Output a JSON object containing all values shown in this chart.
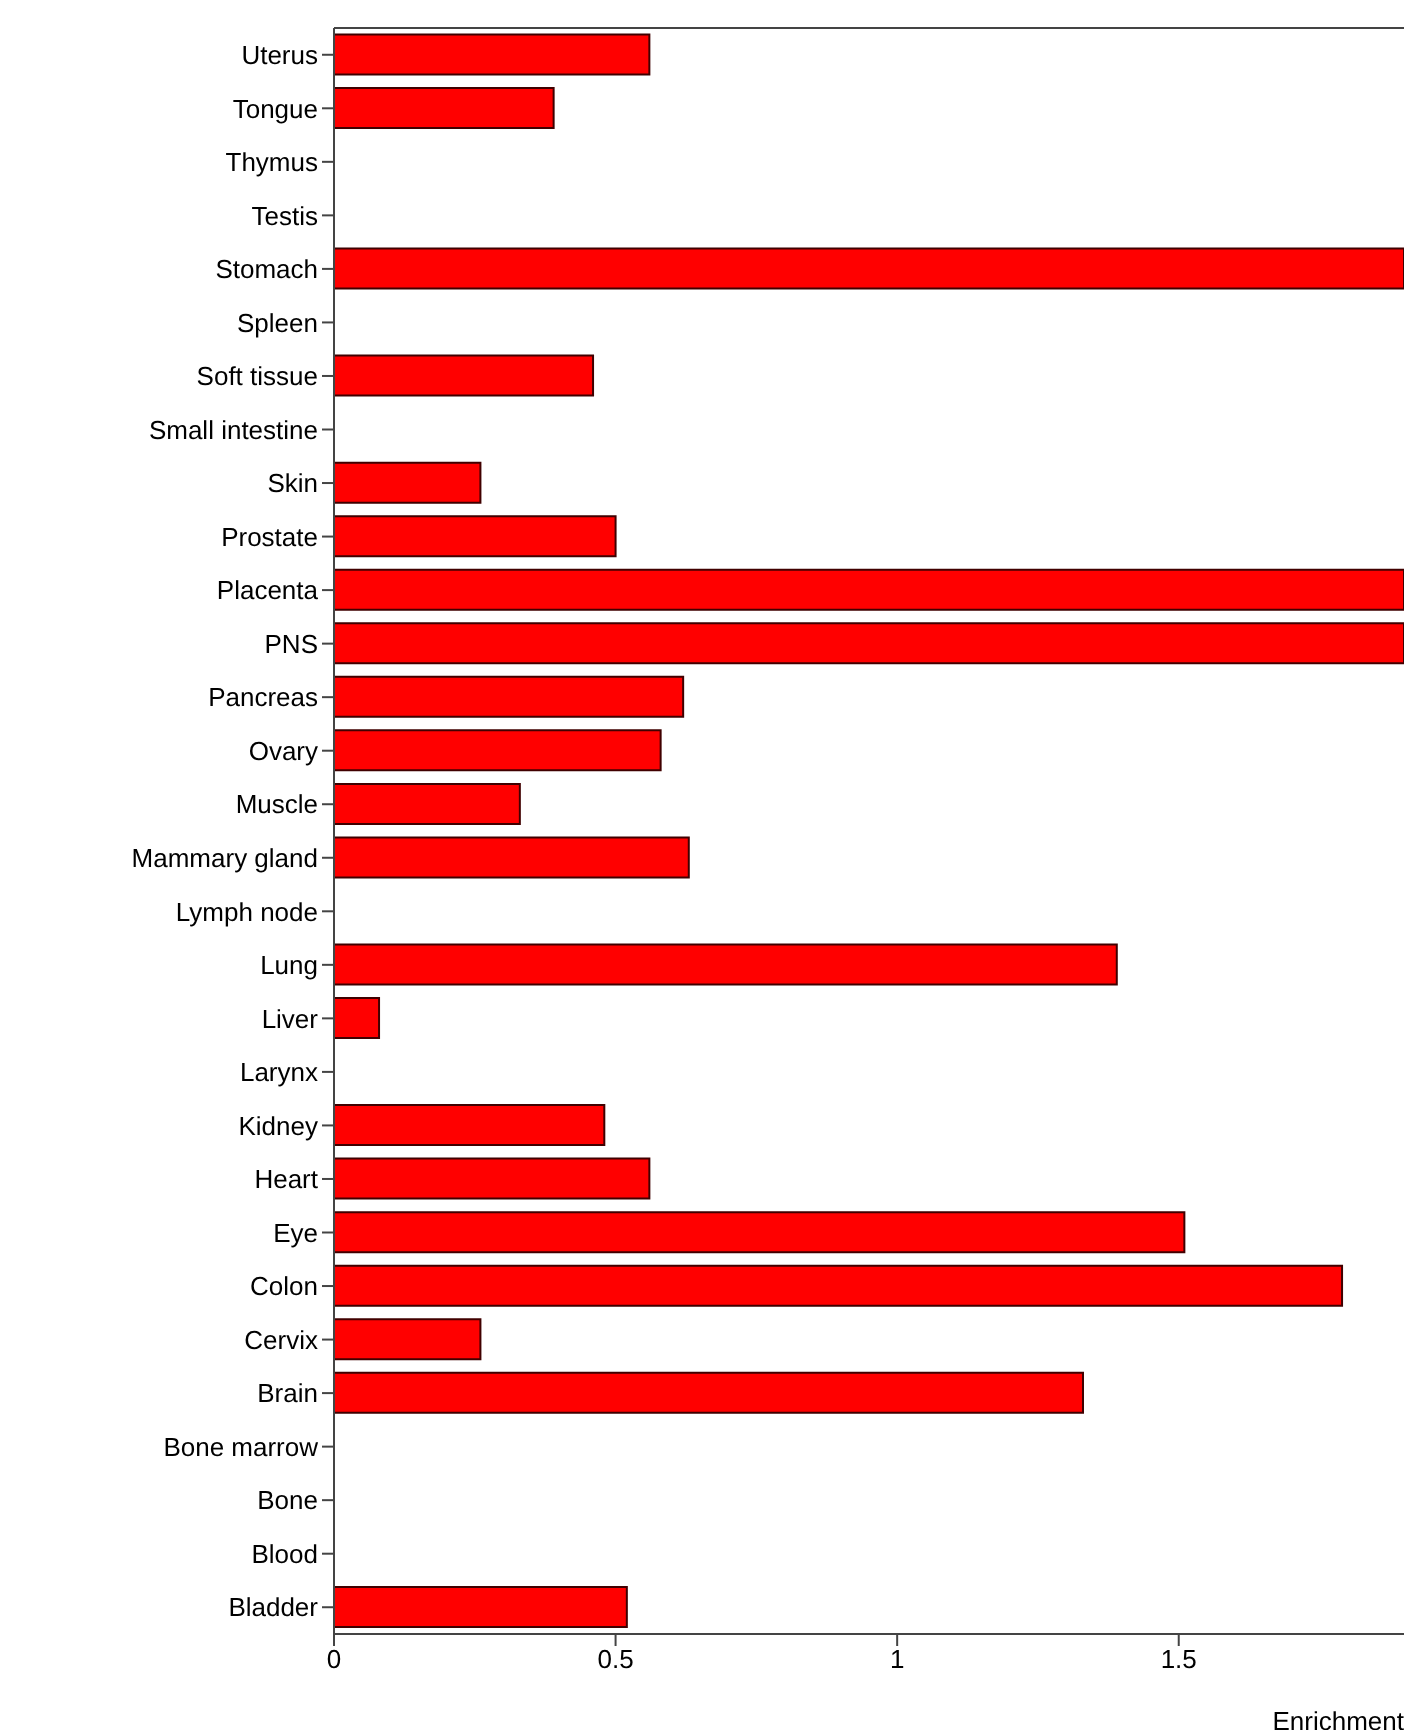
{
  "chart_data": {
    "type": "bar",
    "orientation": "horizontal",
    "xlabel": "Enrichment",
    "categories": [
      "Uterus",
      "Tongue",
      "Thymus",
      "Testis",
      "Stomach",
      "Spleen",
      "Soft tissue",
      "Small intestine",
      "Skin",
      "Prostate",
      "Placenta",
      "PNS",
      "Pancreas",
      "Ovary",
      "Muscle",
      "Mammary gland",
      "Lymph node",
      "Lung",
      "Liver",
      "Larynx",
      "Kidney",
      "Heart",
      "Eye",
      "Colon",
      "Cervix",
      "Brain",
      "Bone marrow",
      "Bone",
      "Blood",
      "Bladder"
    ],
    "values": [
      0.56,
      0.39,
      0,
      0,
      1.9,
      0,
      0.46,
      0,
      0.26,
      0.5,
      1.9,
      1.9,
      0.62,
      0.58,
      0.33,
      0.63,
      0,
      1.39,
      0.08,
      0,
      0.48,
      0.56,
      1.51,
      1.79,
      0.26,
      1.33,
      0,
      0,
      0,
      0.52
    ],
    "color": "#ff0000",
    "xlim": [
      0,
      1.9
    ],
    "xticks": [
      0,
      0.5,
      1,
      1.5
    ]
  }
}
